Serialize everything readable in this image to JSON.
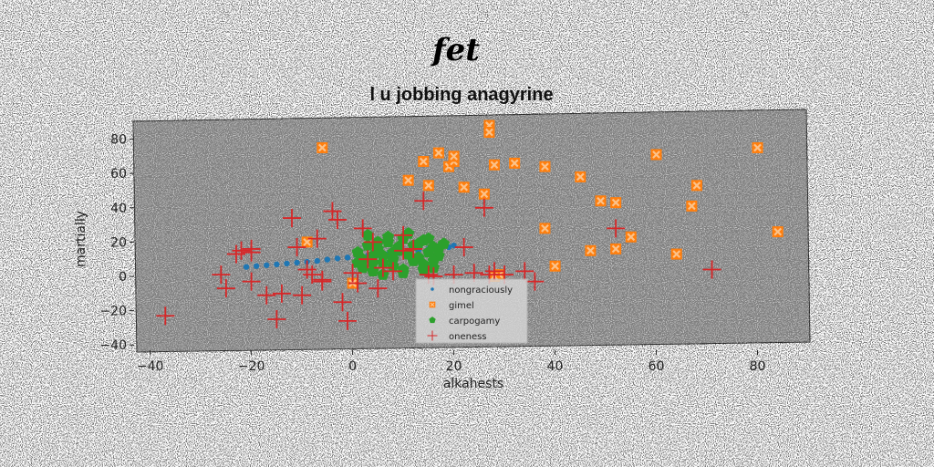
{
  "figure": {
    "suptitle": "fet"
  },
  "chart_data": {
    "type": "scatter",
    "title": "l u jobbing anagyrine",
    "xlabel": "alkahests",
    "ylabel": "martially",
    "xlim": [
      -43,
      90
    ],
    "ylim": [
      -42,
      92
    ],
    "xticks": [
      -40,
      -20,
      0,
      20,
      40,
      60,
      80
    ],
    "yticks": [
      -40,
      -20,
      0,
      20,
      40,
      60,
      80
    ],
    "grid": false,
    "legend_position": "lower-center",
    "colors": {
      "nongraciously": "#1f77b4",
      "gimel": "#ff7f0e",
      "carpogamy": "#2ca02c",
      "oneness": "#d62728",
      "axes_background": "#808080"
    },
    "series": [
      {
        "name": "nongraciously",
        "marker": "dot",
        "x": [
          -21,
          -19,
          -17,
          -15,
          -13,
          -11,
          -9,
          -7,
          -5,
          -3,
          -1,
          1,
          3,
          5,
          7,
          9,
          11,
          13,
          15,
          17,
          19,
          20
        ],
        "y": [
          5.5,
          6,
          6.5,
          7,
          7.5,
          8,
          8.5,
          9,
          9.8,
          10.5,
          11,
          11.5,
          12,
          12.5,
          13,
          13.5,
          14.5,
          15,
          16,
          16.5,
          17,
          18
        ]
      },
      {
        "name": "gimel",
        "marker": "x-square",
        "x": [
          -6,
          11,
          14,
          15,
          17,
          19,
          20,
          20,
          22,
          26,
          27,
          27,
          28,
          29,
          32,
          38,
          38,
          40,
          45,
          47,
          49,
          52,
          52,
          55,
          60,
          64,
          67,
          68,
          80,
          84,
          -9,
          0,
          28
        ],
        "y": [
          75,
          56,
          67,
          53,
          72,
          64,
          67,
          70,
          52,
          48,
          88,
          84,
          65,
          1,
          66,
          64,
          28,
          6,
          58,
          15,
          44,
          16,
          43,
          23,
          71,
          13,
          41,
          53,
          75,
          26,
          20,
          -4,
          0
        ],
        "_comment": ""
      },
      {
        "name": "carpogamy",
        "marker": "pentagon",
        "x": [
          1,
          2,
          3,
          4,
          5,
          6,
          7,
          8,
          9,
          10,
          11,
          12,
          13,
          14,
          15,
          16,
          17,
          18,
          2,
          4,
          6,
          8,
          10,
          12,
          14,
          16,
          3,
          5,
          7,
          9,
          11,
          13,
          15,
          17,
          1,
          4,
          8,
          12,
          16,
          6,
          10,
          14
        ],
        "y": [
          14,
          10,
          18,
          8,
          16,
          12,
          20,
          10,
          15,
          22,
          13,
          18,
          11,
          21,
          14,
          17,
          12,
          19,
          5,
          3,
          8,
          6,
          4,
          9,
          7,
          5,
          24,
          20,
          23,
          17,
          25,
          19,
          22,
          16,
          8,
          12,
          14,
          10,
          9,
          1,
          2,
          4
        ]
      },
      {
        "name": "oneness",
        "marker": "plus",
        "x": [
          -37,
          -26,
          -25,
          -23,
          -22,
          -20,
          -20,
          -17,
          -15,
          -14,
          -12,
          -11,
          -10,
          -9,
          -8,
          -7,
          -6,
          -6,
          -4,
          -3,
          -2,
          -1,
          0,
          1,
          2,
          3,
          4,
          5,
          6,
          8,
          10,
          12,
          14,
          15,
          16,
          20,
          22,
          24,
          26,
          27,
          28,
          30,
          34,
          36,
          52,
          71,
          -20,
          10
        ],
        "y": [
          -23,
          1,
          -7,
          13,
          15,
          14,
          -3,
          -11,
          -25,
          -10,
          34,
          17,
          -11,
          4,
          1,
          22,
          -2,
          -3,
          38,
          33,
          -15,
          -26,
          2,
          -4,
          28,
          10,
          20,
          -7,
          5,
          3,
          24,
          16,
          44,
          1,
          0,
          1,
          17,
          2,
          40,
          1,
          3,
          1,
          3,
          -3,
          28,
          4,
          16,
          15
        ]
      }
    ]
  }
}
